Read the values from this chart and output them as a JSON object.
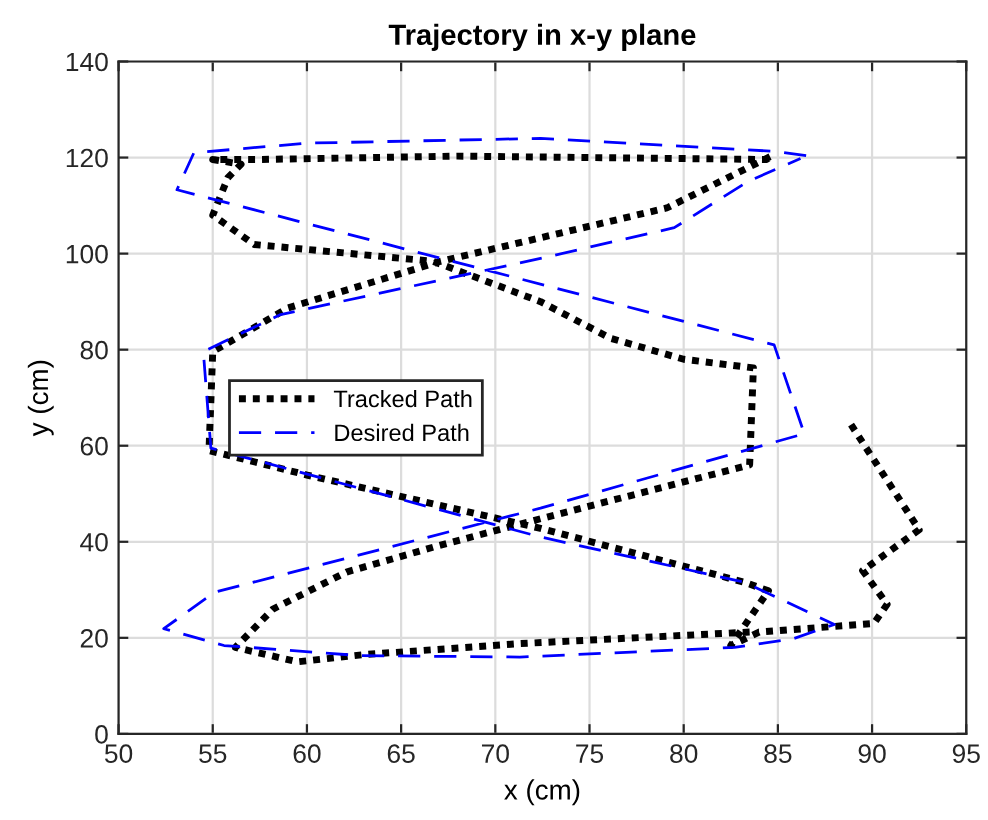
{
  "chart_data": {
    "type": "line",
    "title": "Trajectory in x-y plane",
    "xlabel": "x (cm)",
    "ylabel": "y (cm)",
    "xlim": [
      50,
      95
    ],
    "xticks": [
      50,
      55,
      60,
      65,
      70,
      75,
      80,
      85,
      90,
      95
    ],
    "ylim": [
      0,
      140
    ],
    "yticks": [
      0,
      20,
      40,
      60,
      80,
      100,
      120,
      140
    ],
    "grid": true,
    "legend": "center",
    "marker": "none",
    "series": [
      {
        "name": "Tracked Path",
        "color": "#000000",
        "line_style": "dotted",
        "x": [
          83.5,
          71.3,
          63,
          59.5,
          56.2,
          58.2,
          62.1,
          67,
          72.4,
          83.5,
          83.7,
          80,
          76.1,
          72.4,
          66.7,
          57.2,
          55,
          55.8,
          56.5,
          55,
          57.5,
          68,
          84.4,
          84.7,
          79.1,
          72.4,
          67.1,
          59,
          55,
          54.8,
          60,
          72.4,
          83.2,
          84.5,
          82.5,
          84,
          90.1,
          90.8,
          89.5,
          92.5,
          88.7
        ],
        "values": [
          21.2,
          18.8,
          16.5,
          15,
          18,
          26,
          33.7,
          39.2,
          44.8,
          56,
          76.2,
          78,
          82.4,
          90,
          98.4,
          101.9,
          108,
          115.8,
          118.6,
          119.6,
          119.6,
          120.3,
          119.6,
          120.4,
          109.5,
          103.3,
          98.4,
          88.7,
          79.6,
          59,
          53.9,
          42.8,
          31.6,
          29.8,
          18.4,
          21.2,
          23,
          27,
          34,
          42.5,
          65.5
        ]
      },
      {
        "name": "Desired Path",
        "color": "#0000ff",
        "line_style": "dashed",
        "x": [
          86.5,
          84.8,
          72.4,
          60,
          54,
          53.1,
          84.8,
          86.4,
          72.4,
          55.1,
          52.4,
          55.6,
          62.8,
          71.3,
          82.7,
          85.8,
          88,
          83.2,
          72.4,
          54.9,
          54.5,
          58.6,
          72.4,
          79.5,
          83.4,
          86.2
        ],
        "values": [
          120.4,
          121.3,
          124,
          123,
          121,
          113.3,
          81,
          62.5,
          47,
          29.5,
          21.9,
          18.4,
          16.3,
          16,
          18,
          19.8,
          22.8,
          31.6,
          41,
          59.5,
          79.6,
          87.3,
          99,
          105.4,
          115,
          119.8
        ]
      }
    ]
  }
}
